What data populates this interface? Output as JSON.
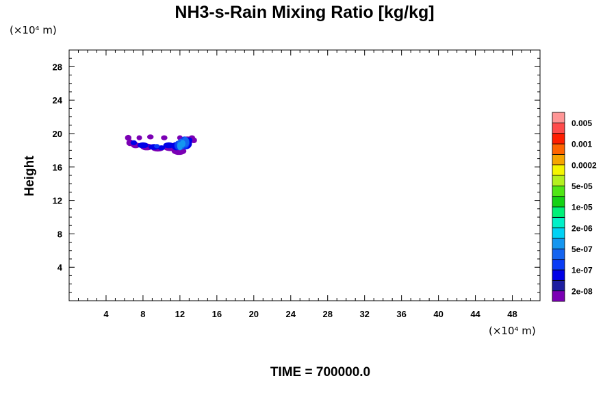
{
  "chart_data": {
    "type": "heatmap",
    "title": "NH3-s-Rain Mixing Ratio [kg/kg]",
    "xlabel": "",
    "ylabel": "Height",
    "x_unit": "(×10⁴ m)",
    "y_unit": "(×10⁴ m)",
    "footer": "TIME = 700000.0",
    "xlim": [
      0,
      51
    ],
    "ylim": [
      0,
      30
    ],
    "x_ticks": [
      4,
      8,
      12,
      16,
      20,
      24,
      28,
      32,
      36,
      40,
      44,
      48
    ],
    "y_ticks": [
      4,
      8,
      12,
      16,
      20,
      24,
      28
    ],
    "colorbar": {
      "colors": [
        "#7B00B4",
        "#1E1EA0",
        "#0000E6",
        "#0A3CF5",
        "#1464F0",
        "#1496F0",
        "#00D2F5",
        "#00F0C8",
        "#00F078",
        "#14D214",
        "#50E614",
        "#B4F01E",
        "#F5F500",
        "#F5A500",
        "#FF6400",
        "#FF1E00",
        "#FF4B4B",
        "#FF9696"
      ],
      "labels": [
        "2e-08",
        "1e-07",
        "5e-07",
        "2e-06",
        "1e-05",
        "5e-05",
        "0.0002",
        "0.001",
        "0.005"
      ]
    },
    "regions": [
      {
        "level": 0,
        "blobs": [
          [
            6.4,
            19.5,
            0.35,
            0.35
          ],
          [
            6.6,
            18.9,
            0.4,
            0.4
          ],
          [
            7.2,
            18.6,
            0.5,
            0.35
          ],
          [
            7.6,
            19.5,
            0.3,
            0.3
          ],
          [
            8.4,
            18.4,
            0.7,
            0.4
          ],
          [
            8.8,
            19.6,
            0.35,
            0.3
          ],
          [
            9.6,
            18.2,
            0.7,
            0.35
          ],
          [
            10.3,
            19.5,
            0.35,
            0.3
          ],
          [
            11.0,
            18.3,
            0.8,
            0.4
          ],
          [
            11.9,
            17.9,
            0.8,
            0.45
          ],
          [
            12.8,
            19.2,
            0.7,
            0.45
          ],
          [
            13.3,
            19.5,
            0.35,
            0.3
          ],
          [
            13.5,
            19.2,
            0.35,
            0.35
          ],
          [
            12.0,
            19.5,
            0.3,
            0.3
          ]
        ]
      },
      {
        "level": 2,
        "blobs": [
          [
            7.0,
            18.9,
            0.35,
            0.3
          ],
          [
            8.0,
            18.6,
            0.6,
            0.35
          ],
          [
            9.2,
            18.4,
            0.6,
            0.35
          ],
          [
            10.0,
            18.3,
            0.4,
            0.3
          ],
          [
            10.8,
            18.6,
            0.6,
            0.35
          ],
          [
            11.6,
            18.5,
            0.5,
            0.5
          ],
          [
            12.6,
            18.8,
            0.7,
            0.7
          ],
          [
            13.0,
            19.2,
            0.35,
            0.35
          ]
        ]
      },
      {
        "level": 3,
        "blobs": [
          [
            11.8,
            18.6,
            0.4,
            0.55
          ],
          [
            12.5,
            18.9,
            0.55,
            0.75
          ],
          [
            9.5,
            18.5,
            0.3,
            0.25
          ]
        ]
      },
      {
        "level": 4,
        "blobs": [
          [
            12.1,
            18.7,
            0.45,
            0.65
          ],
          [
            12.6,
            19.0,
            0.4,
            0.6
          ]
        ]
      },
      {
        "level": 5,
        "blobs": [
          [
            12.0,
            18.5,
            0.3,
            0.5
          ],
          [
            12.3,
            18.8,
            0.3,
            0.45
          ]
        ]
      }
    ]
  }
}
